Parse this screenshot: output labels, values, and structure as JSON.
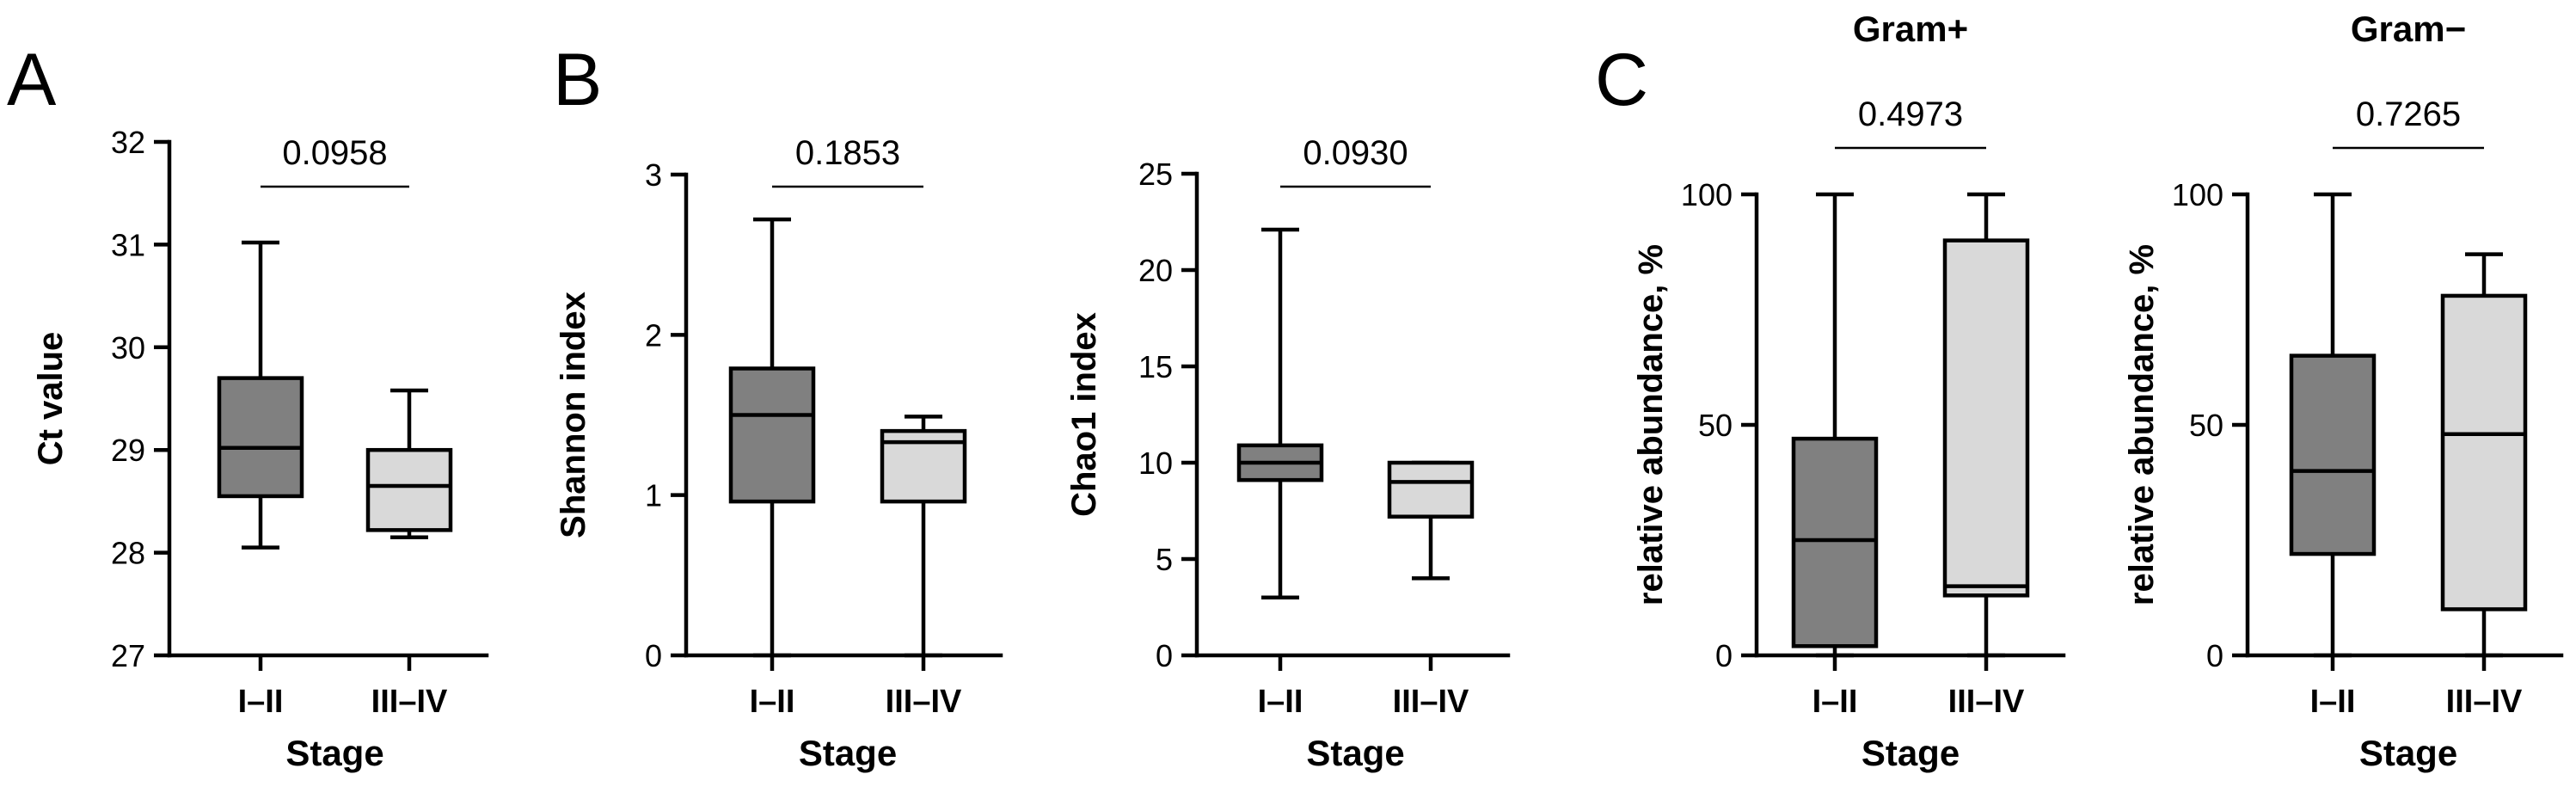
{
  "panel_letters": [
    "A",
    "B",
    "C"
  ],
  "colors": {
    "group1_fill": "#808080",
    "group2_fill": "#d9d9d9",
    "stroke": "#000000"
  },
  "chart_data": [
    {
      "type": "boxplot",
      "panel": "A",
      "title": "",
      "xlabel": "Stage",
      "ylabel": "Ct value",
      "categories": [
        "I–II",
        "III–IV"
      ],
      "ylim": [
        27,
        32
      ],
      "yticks": [
        27,
        28,
        29,
        30,
        31,
        32
      ],
      "p_value": "0.0958",
      "boxes": [
        {
          "min": 28.05,
          "q1": 28.55,
          "median": 29.02,
          "q3": 29.7,
          "max": 31.02
        },
        {
          "min": 28.15,
          "q1": 28.22,
          "median": 28.65,
          "q3": 29.0,
          "max": 29.58
        }
      ]
    },
    {
      "type": "boxplot",
      "panel": "B",
      "title": "",
      "xlabel": "Stage",
      "ylabel": "Shannon index",
      "categories": [
        "I–II",
        "III–IV"
      ],
      "ylim": [
        0,
        3
      ],
      "yticks": [
        0,
        1,
        2,
        3
      ],
      "p_value": "0.1853",
      "boxes": [
        {
          "min": 0.0,
          "q1": 0.96,
          "median": 1.5,
          "q3": 1.79,
          "max": 2.72
        },
        {
          "min": 0.0,
          "q1": 0.96,
          "median": 1.33,
          "q3": 1.4,
          "max": 1.49
        }
      ]
    },
    {
      "type": "boxplot",
      "panel": "",
      "title": "",
      "xlabel": "Stage",
      "ylabel": "Chao1 index",
      "categories": [
        "I–II",
        "III–IV"
      ],
      "ylim": [
        0,
        25
      ],
      "yticks": [
        0,
        5,
        10,
        15,
        20,
        25
      ],
      "p_value": "0.0930",
      "boxes": [
        {
          "min": 3.0,
          "q1": 9.1,
          "median": 10.0,
          "q3": 10.9,
          "max": 22.1
        },
        {
          "min": 4.0,
          "q1": 7.2,
          "median": 9.0,
          "q3": 10.0,
          "max": 10.0
        }
      ]
    },
    {
      "type": "boxplot",
      "panel": "C",
      "title": "Gram+",
      "xlabel": "Stage",
      "ylabel": "relative abundance, %",
      "categories": [
        "I–II",
        "III–IV"
      ],
      "ylim": [
        0,
        100
      ],
      "yticks": [
        0,
        50,
        100
      ],
      "p_value": "0.4973",
      "boxes": [
        {
          "min": 0.0,
          "q1": 2.0,
          "median": 25.0,
          "q3": 47.0,
          "max": 100.0
        },
        {
          "min": 0.0,
          "q1": 13.0,
          "median": 15.0,
          "q3": 90.0,
          "max": 100.0
        }
      ]
    },
    {
      "type": "boxplot",
      "panel": "",
      "title": "Gram−",
      "xlabel": "Stage",
      "ylabel": "relative abundance, %",
      "categories": [
        "I–II",
        "III–IV"
      ],
      "ylim": [
        0,
        100
      ],
      "yticks": [
        0,
        50,
        100
      ],
      "p_value": "0.7265",
      "boxes": [
        {
          "min": 0.0,
          "q1": 22.0,
          "median": 40.0,
          "q3": 65.0,
          "max": 100.0
        },
        {
          "min": 0.0,
          "q1": 10.0,
          "median": 48.0,
          "q3": 78.0,
          "max": 87.0
        }
      ]
    }
  ]
}
